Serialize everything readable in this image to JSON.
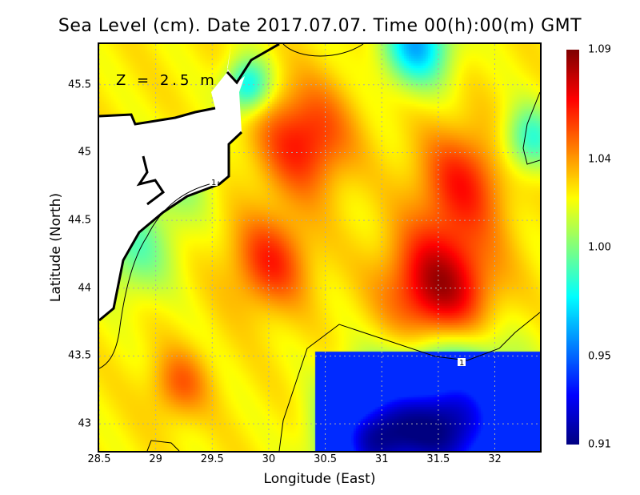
{
  "chart_data": {
    "type": "heatmap",
    "title": "Sea Level (cm). Date 2017.07.07. Time 00(h):00(m) GMT",
    "xlabel": "Longitude (East)",
    "ylabel": "Latitude (North)",
    "annotation": "Z = 2.5 m",
    "xlim": [
      28.5,
      32.4
    ],
    "ylim": [
      42.8,
      45.8
    ],
    "xticks": [
      "28.5",
      "29",
      "29.5",
      "30",
      "30.5",
      "31",
      "31.5",
      "32"
    ],
    "yticks": [
      "43",
      "43.5",
      "44",
      "44.5",
      "45",
      "45.5"
    ],
    "grid": true,
    "colorbar": {
      "min": 0.91,
      "max": 1.09,
      "ticks": [
        "0.91",
        "0.95",
        "1.00",
        "1.04",
        "1.09"
      ],
      "colormap": "jet"
    },
    "contour_labels": [
      "1",
      "1"
    ],
    "features": [
      {
        "name": "max",
        "lon": 31.5,
        "lat": 44.0,
        "value": 1.08
      },
      {
        "name": "min",
        "lon": 31.8,
        "lat": 43.0,
        "value": 0.92
      }
    ]
  }
}
